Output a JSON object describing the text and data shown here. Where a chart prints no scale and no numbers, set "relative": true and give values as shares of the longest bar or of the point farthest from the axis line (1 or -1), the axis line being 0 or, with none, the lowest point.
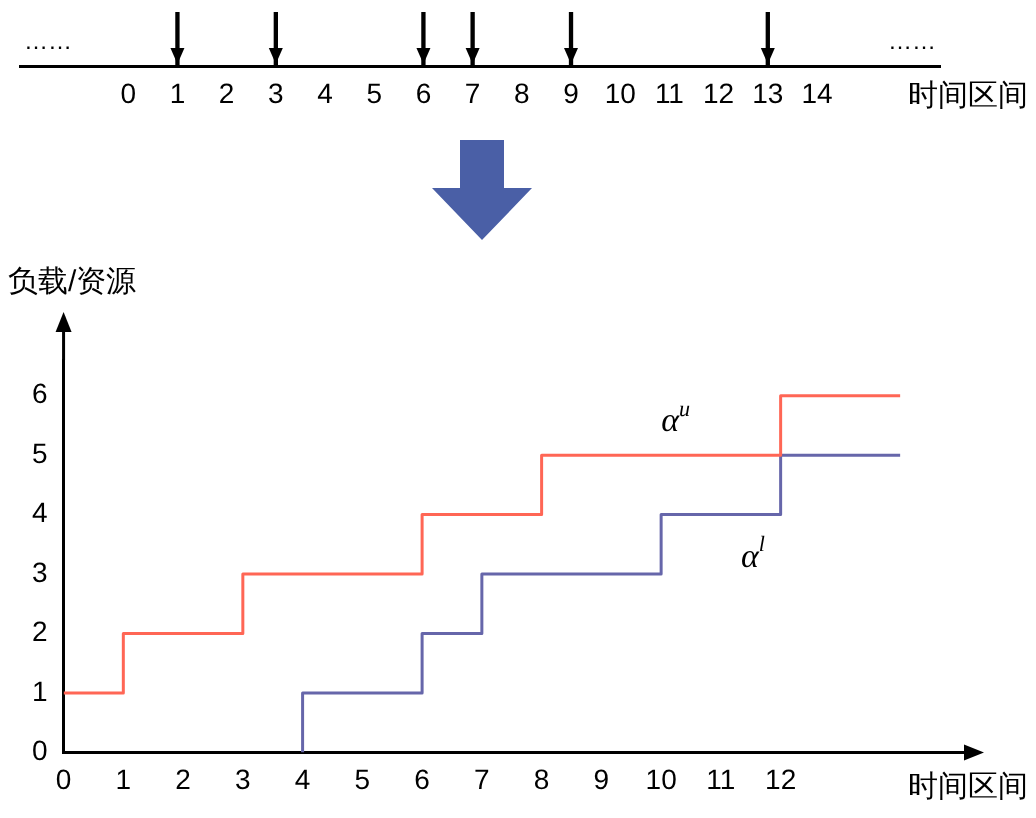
{
  "chart_data": [
    {
      "type": "bar",
      "relative": true,
      "x": [
        1,
        3,
        6,
        7,
        9,
        13
      ],
      "values": [
        1,
        1,
        1,
        1,
        1,
        1
      ],
      "color": "#000000",
      "xlim": [
        -2.2,
        16.5
      ],
      "xticks": [
        0,
        1,
        2,
        3,
        4,
        5,
        6,
        7,
        8,
        9,
        10,
        11,
        12,
        13,
        14
      ],
      "xlabel": "时间区间",
      "annotations": [
        "……",
        "……"
      ],
      "tick_labels": "x",
      "grid": false,
      "legend": false
    },
    {
      "type": "step",
      "xlabel": "时间区间",
      "ylabel": "负载/资源",
      "xlim": [
        0,
        14.6
      ],
      "ylim": [
        0,
        6.6
      ],
      "xticks": [
        0,
        1,
        2,
        3,
        4,
        5,
        6,
        7,
        8,
        9,
        10,
        11,
        12
      ],
      "yticks": [
        0,
        1,
        2,
        3,
        4,
        5,
        6
      ],
      "grid": false,
      "legend": false,
      "series": [
        {
          "name": "α$^{u}$",
          "color": "#ff6655",
          "x": [
            0,
            1,
            3,
            6,
            8,
            12,
            14
          ],
          "values": [
            1,
            2,
            3,
            4,
            5,
            6,
            6
          ]
        },
        {
          "name": "α$^{l}$",
          "color": "#6666aa",
          "x": [
            4,
            4,
            6,
            7,
            10,
            12,
            14
          ],
          "values": [
            0,
            1,
            2,
            3,
            4,
            5,
            5
          ]
        }
      ]
    }
  ]
}
